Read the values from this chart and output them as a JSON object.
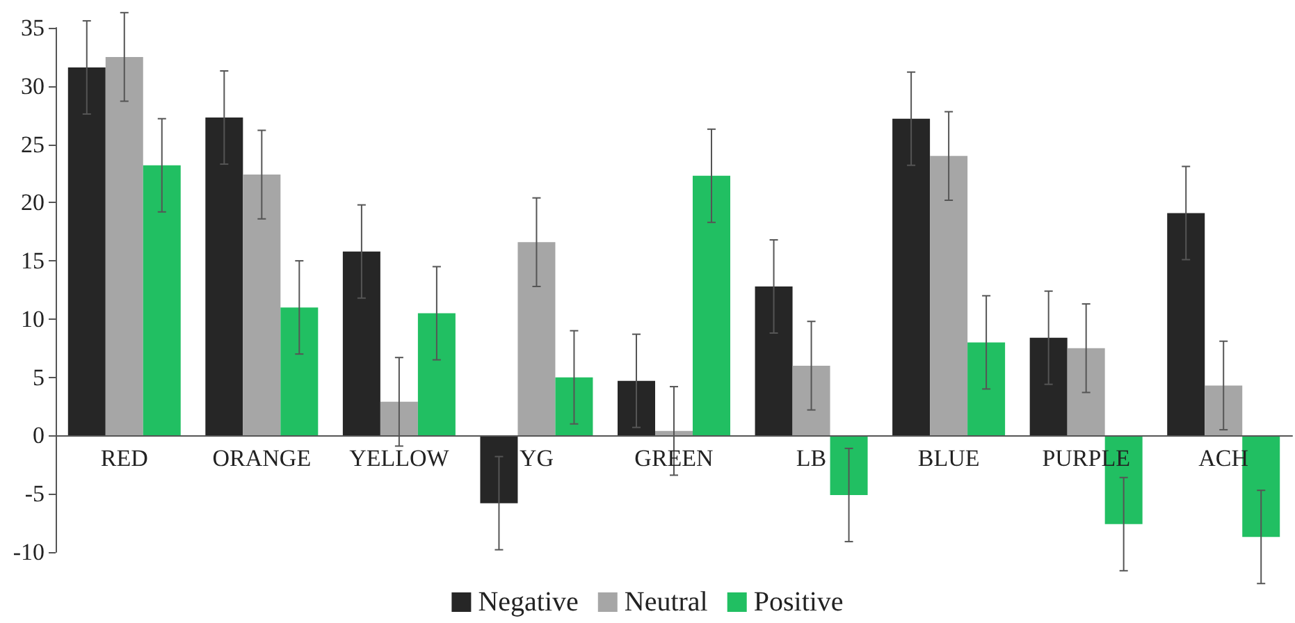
{
  "chart_data": {
    "type": "bar",
    "categories": [
      "RED",
      "ORANGE",
      "YELLOW",
      "YG",
      "GREEN",
      "LB",
      "BLUE",
      "PURPLE",
      "ACH"
    ],
    "series": [
      {
        "name": "Negative",
        "color": "#262626",
        "values": [
          31.6,
          27.3,
          15.8,
          -5.8,
          4.7,
          12.8,
          27.2,
          8.4,
          19.1
        ],
        "errors": [
          4,
          4,
          4,
          4,
          4,
          4,
          4,
          4,
          4
        ]
      },
      {
        "name": "Neutral",
        "color": "#a6a6a6",
        "values": [
          32.5,
          22.4,
          2.9,
          16.6,
          0.4,
          6.0,
          24.0,
          7.5,
          4.3
        ],
        "errors": [
          3.8,
          3.8,
          3.8,
          3.8,
          3.8,
          3.8,
          3.8,
          3.8,
          3.8
        ]
      },
      {
        "name": "Positive",
        "color": "#21bf62",
        "values": [
          23.2,
          11.0,
          10.5,
          5.0,
          22.3,
          -5.1,
          8.0,
          -7.6,
          -8.7
        ],
        "errors": [
          4,
          4,
          4,
          4,
          4,
          4,
          4,
          4,
          4
        ]
      }
    ],
    "ylim": [
      -10,
      35
    ],
    "yticks": [
      -10,
      -5,
      0,
      5,
      10,
      15,
      20,
      25,
      30,
      35
    ],
    "legend": "bottom"
  }
}
